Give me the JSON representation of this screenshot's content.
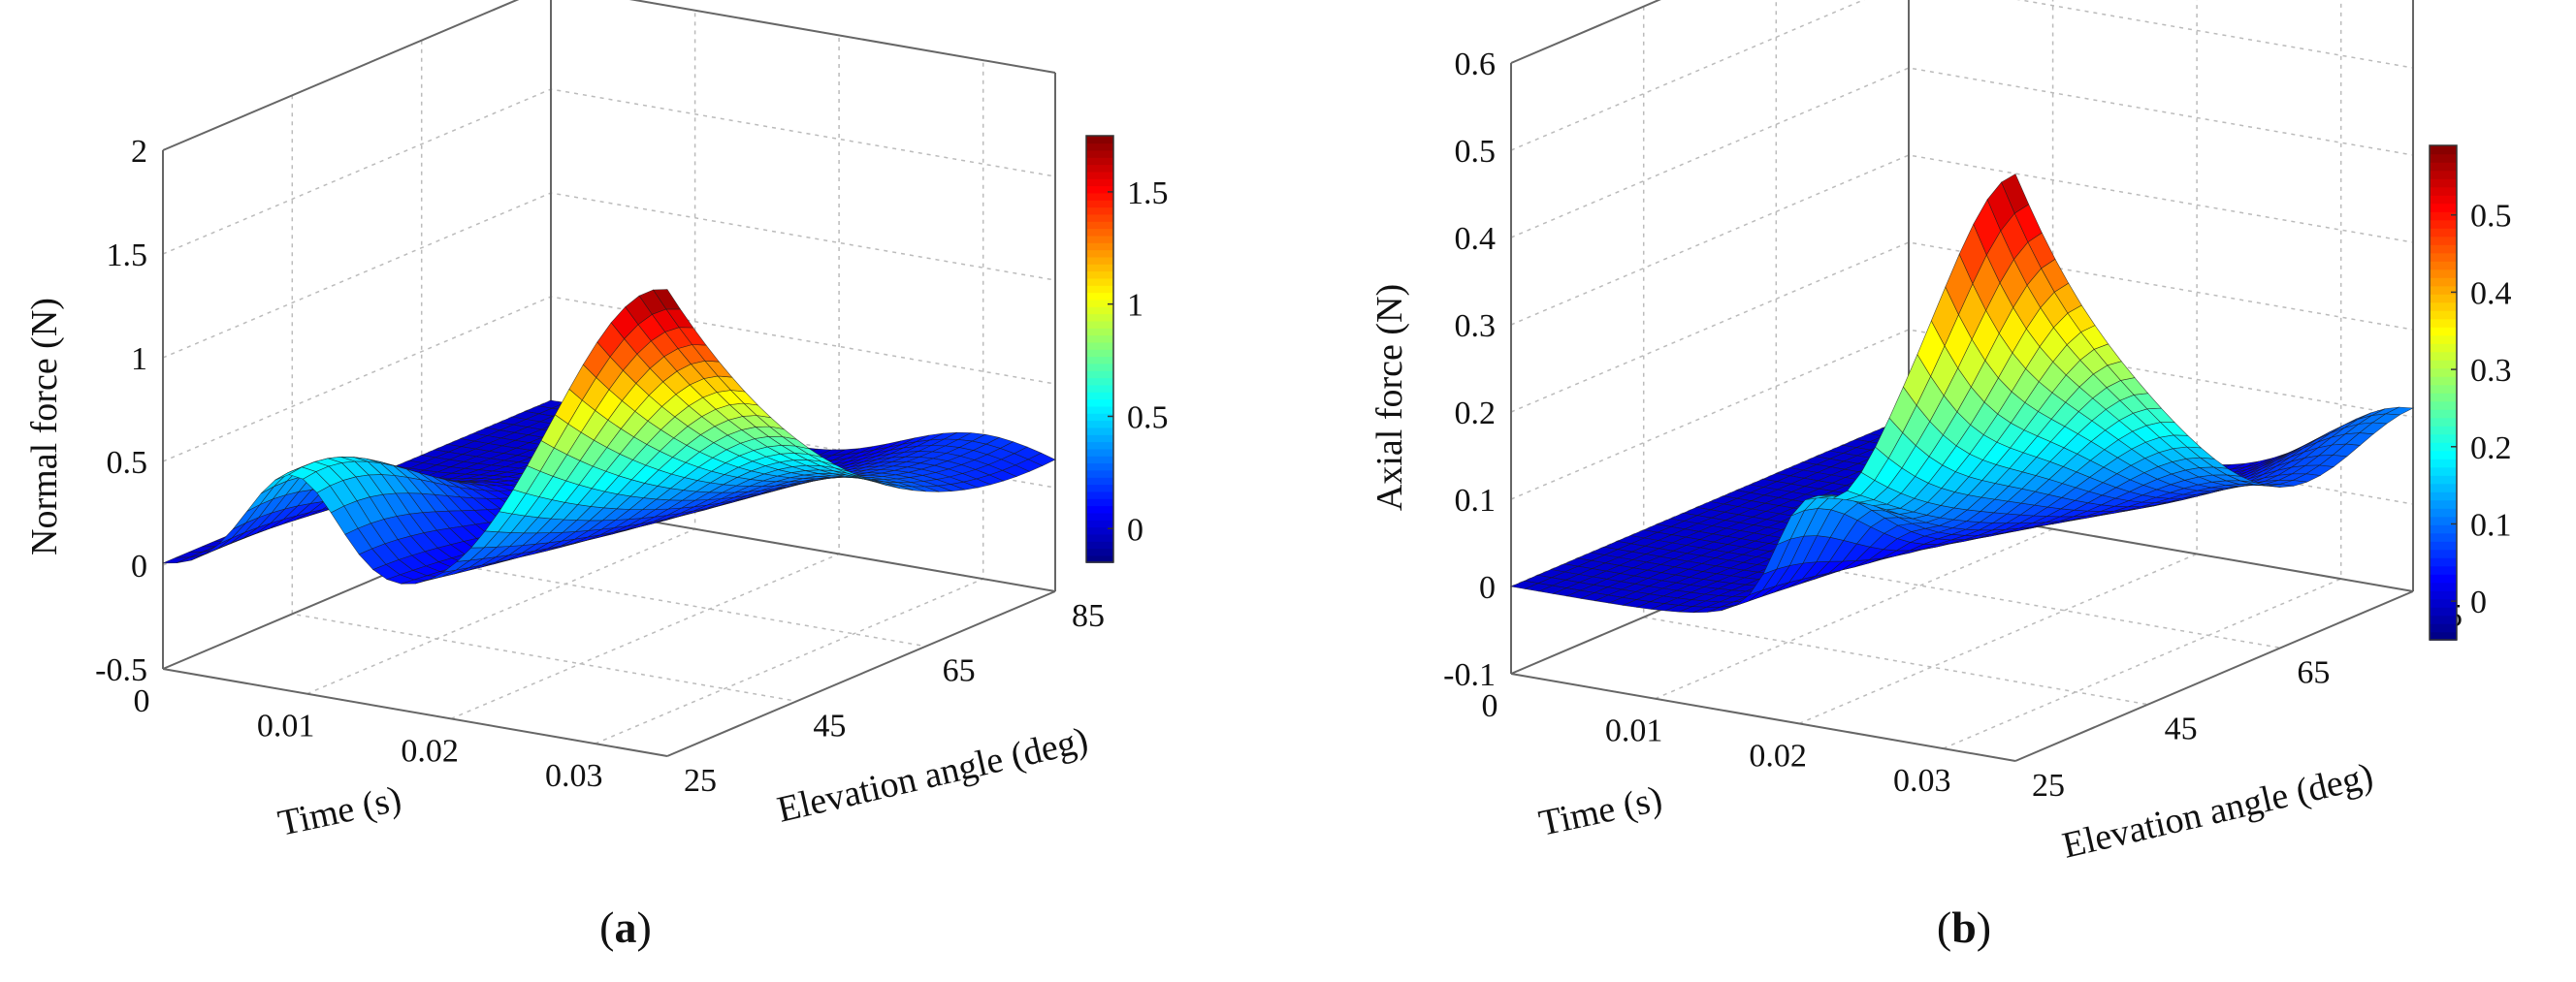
{
  "chart_data": [
    {
      "type": "surface3d",
      "panel_label": "a",
      "zlabel": "Normal force (N)",
      "xlabel": "Time (s)",
      "ylabel": "Elevation angle (deg)",
      "x_ticks": [
        "0",
        "0.01",
        "0.02",
        "0.03"
      ],
      "y_ticks": [
        "25",
        "45",
        "65",
        "85"
      ],
      "z_ticks": [
        "-0.5",
        "0",
        "0.5",
        "1",
        "1.5",
        "2"
      ],
      "xlim": [
        0,
        0.035
      ],
      "ylim": [
        25,
        85
      ],
      "zlim": [
        -0.5,
        2
      ],
      "colorbar": {
        "ticks": [
          "0",
          "0.5",
          "1",
          "1.5"
        ],
        "range": [
          -0.15,
          1.75
        ]
      },
      "grid": true,
      "summary": {
        "peak_value": 1.75,
        "peak_time": 0.035,
        "peak_angle": 25
      }
    },
    {
      "type": "surface3d",
      "panel_label": "b",
      "zlabel": "Axial force (N)",
      "xlabel": "Time (s)",
      "ylabel": "Elevation angle (deg)",
      "x_ticks": [
        "0",
        "0.01",
        "0.02",
        "0.03"
      ],
      "y_ticks": [
        "25",
        "45",
        "65",
        "85"
      ],
      "z_ticks": [
        "-0.1",
        "0",
        "0.1",
        "0.2",
        "0.3",
        "0.4",
        "0.5",
        "0.6"
      ],
      "xlim": [
        0,
        0.035
      ],
      "ylim": [
        25,
        85
      ],
      "zlim": [
        -0.1,
        0.6
      ],
      "colorbar": {
        "ticks": [
          "0",
          "0.1",
          "0.2",
          "0.3",
          "0.4",
          "0.5"
        ],
        "range": [
          -0.05,
          0.59
        ]
      },
      "grid": true,
      "summary": {
        "peak_value": 0.59,
        "peak_time": 0.035,
        "peak_angle": 25
      }
    }
  ],
  "captions": {
    "a": "a",
    "b": "b"
  }
}
